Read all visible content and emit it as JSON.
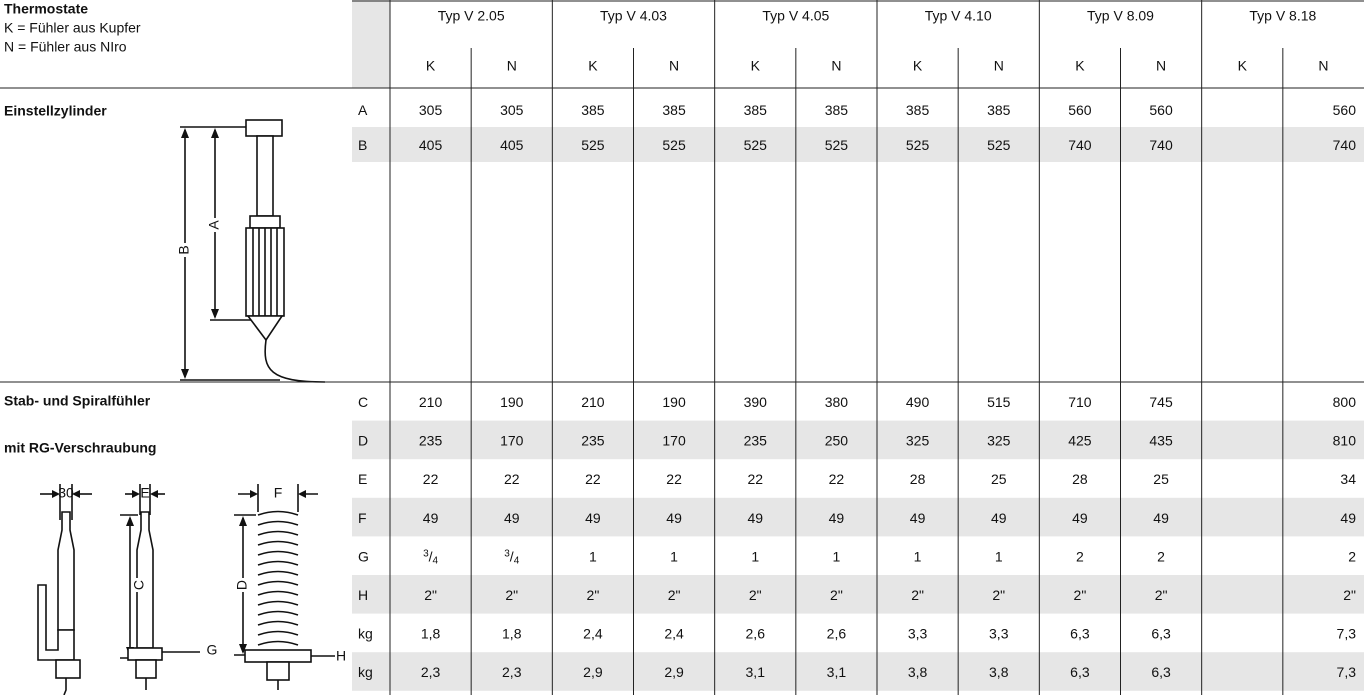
{
  "header": {
    "title": "Thermostate",
    "lines": [
      "K = Fühler aus Kupfer",
      "N = Fühler aus NIro"
    ]
  },
  "types": [
    "Typ V 2.05",
    "Typ V 4.03",
    "Typ V 4.05",
    "Typ V 4.10",
    "Typ V 8.09",
    "Typ V 8.18"
  ],
  "subcolumns": [
    "K",
    "N"
  ],
  "sections": [
    {
      "title": [
        "Einstellzylinder"
      ],
      "drawing_labels": [
        "A",
        "B"
      ],
      "rows": [
        {
          "label": "A",
          "values": [
            305,
            305,
            385,
            385,
            385,
            385,
            385,
            385,
            560,
            560,
            null,
            560
          ]
        },
        {
          "label": "B",
          "values": [
            405,
            405,
            525,
            525,
            525,
            525,
            525,
            525,
            740,
            740,
            null,
            740
          ]
        }
      ]
    },
    {
      "title": [
        "Stab- und Spiralfühler",
        "mit RG-Verschraubung"
      ],
      "drawing_labels": [
        "30",
        "E",
        "C",
        "G",
        "F",
        "D",
        "H"
      ],
      "rows": [
        {
          "label": "C",
          "values": [
            210,
            190,
            210,
            190,
            390,
            380,
            490,
            515,
            710,
            745,
            null,
            800
          ]
        },
        {
          "label": "D",
          "values": [
            235,
            170,
            235,
            170,
            235,
            250,
            325,
            325,
            425,
            435,
            null,
            810
          ]
        },
        {
          "label": "E",
          "values": [
            22,
            22,
            22,
            22,
            22,
            22,
            28,
            25,
            28,
            25,
            null,
            34
          ]
        },
        {
          "label": "F",
          "values": [
            49,
            49,
            49,
            49,
            49,
            49,
            49,
            49,
            49,
            49,
            null,
            49
          ]
        },
        {
          "label": "G",
          "values": [
            {
              "num": "3",
              "sep": "/",
              "den": "4"
            },
            {
              "num": "3",
              "sep": "/",
              "den": "4"
            },
            1,
            1,
            1,
            1,
            1,
            1,
            2,
            2,
            null,
            2
          ]
        },
        {
          "label": "H",
          "values": [
            "2\"",
            "2\"",
            "2\"",
            "2\"",
            "2\"",
            "2\"",
            "2\"",
            "2\"",
            "2\"",
            "2\"",
            null,
            "2\""
          ]
        },
        {
          "label": "kg",
          "values": [
            "1,8",
            "1,8",
            "2,4",
            "2,4",
            "2,6",
            "2,6",
            "3,3",
            "3,3",
            "6,3",
            "6,3",
            null,
            "7,3"
          ]
        },
        {
          "label": "kg",
          "values": [
            "2,3",
            "2,3",
            "2,9",
            "2,9",
            "3,1",
            "3,1",
            "3,8",
            "3,8",
            "6,3",
            "6,3",
            null,
            "7,3"
          ]
        }
      ]
    }
  ]
}
